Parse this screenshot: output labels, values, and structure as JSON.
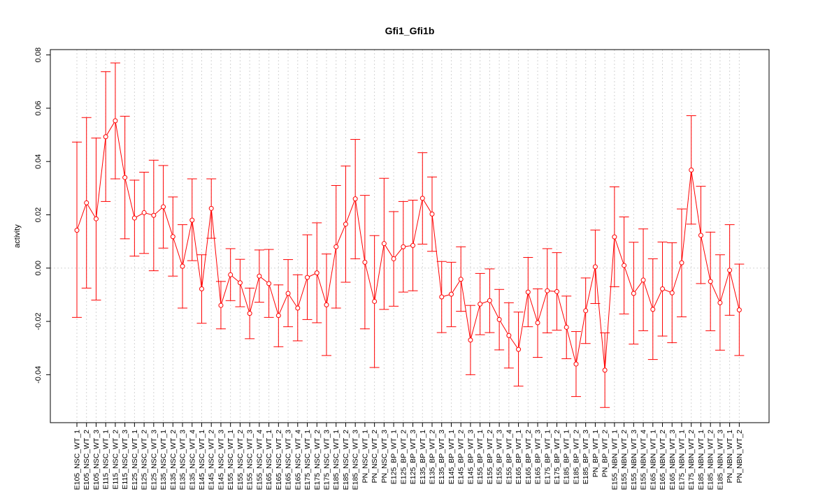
{
  "chart_data": {
    "type": "line",
    "title": "Gfi1_Gfi1b",
    "xlabel": "",
    "ylabel": "activity",
    "ylim": [
      -0.058,
      0.082
    ],
    "yticks": [
      -0.04,
      -0.02,
      0.0,
      0.02,
      0.04,
      0.06,
      0.08
    ],
    "ytick_labels": [
      "-0.04",
      "-0.02",
      "0.00",
      "0.02",
      "0.04",
      "0.06",
      "0.08"
    ],
    "grid": true,
    "color": "#ff0000",
    "categories": [
      "E105_NSC_WT_1",
      "E105_NSC_WT_2",
      "E105_NSC_WT_3",
      "E115_NSC_WT_1",
      "E115_NSC_WT_2",
      "E115_NSC_WT_3",
      "E125_NSC_WT_1",
      "E125_NSC_WT_2",
      "E125_NSC_WT_3",
      "E135_NSC_WT_1",
      "E135_NSC_WT_2",
      "E135_NSC_WT_3",
      "E135_NSC_WT_4",
      "E145_NSC_WT_1",
      "E145_NSC_WT_2",
      "E145_NSC_WT_3",
      "E155_NSC_WT_1",
      "E155_NSC_WT_2",
      "E155_NSC_WT_3",
      "E155_NSC_WT_4",
      "E165_NSC_WT_1",
      "E165_NSC_WT_2",
      "E165_NSC_WT_3",
      "E165_NSC_WT_4",
      "E175_NSC_WT_1",
      "E175_NSC_WT_2",
      "E175_NSC_WT_3",
      "E185_NSC_WT_1",
      "E185_NSC_WT_2",
      "E185_NSC_WT_3",
      "PN_NSC_WT_1",
      "PN_NSC_WT_2",
      "PN_NSC_WT_3",
      "E125_BP_WT_1",
      "E125_BP_WT_2",
      "E125_BP_WT_3",
      "E135_BP_WT_1",
      "E135_BP_WT_2",
      "E135_BP_WT_3",
      "E145_BP_WT_1",
      "E145_BP_WT_2",
      "E145_BP_WT_3",
      "E155_BP_WT_1",
      "E155_BP_WT_2",
      "E155_BP_WT_3",
      "E155_BP_WT_4",
      "E165_BP_WT_1",
      "E165_BP_WT_2",
      "E165_BP_WT_3",
      "E175_BP_WT_1",
      "E175_BP_WT_2",
      "E185_BP_WT_1",
      "E185_BP_WT_2",
      "E185_BP_WT_3",
      "PN_BP_WT_1",
      "PN_BP_WT_2",
      "E155_NBN_WT_1",
      "E155_NBN_WT_2",
      "E155_NBN_WT_3",
      "E155_NBN_WT_4",
      "E165_NBN_WT_1",
      "E165_NBN_WT_2",
      "E165_NBN_WT_3",
      "E175_NBN_WT_1",
      "E175_NBN_WT_2",
      "E185_NBN_WT_1",
      "E185_NBN_WT_2",
      "E185_NBN_WT_3",
      "PN_NBN_WT_1",
      "PN_NBN_WT_2"
    ],
    "values": [
      0.0142,
      0.0245,
      0.0185,
      0.0493,
      0.0553,
      0.034,
      0.0188,
      0.0208,
      0.0198,
      0.023,
      0.0118,
      0.0007,
      0.018,
      -0.0078,
      0.0224,
      -0.014,
      -0.0025,
      -0.0055,
      -0.017,
      -0.003,
      -0.0058,
      -0.0178,
      -0.0095,
      -0.015,
      -0.0035,
      -0.0018,
      -0.0138,
      0.008,
      0.0165,
      0.026,
      0.0022,
      -0.0125,
      0.0092,
      0.0035,
      0.008,
      0.0085,
      0.0262,
      0.0203,
      -0.0108,
      -0.0098,
      -0.0042,
      -0.027,
      -0.0135,
      -0.0122,
      -0.0193,
      -0.0253,
      -0.0305,
      -0.009,
      -0.0205,
      -0.0085,
      -0.0088,
      -0.0222,
      -0.036,
      -0.016,
      0.0005,
      -0.0383,
      0.0117,
      0.001,
      -0.0095,
      -0.0045,
      -0.0155,
      -0.0078,
      -0.0093,
      0.002,
      0.0368,
      0.0123,
      -0.005,
      -0.013,
      -0.0008,
      -0.0157
    ],
    "lower": [
      -0.0185,
      -0.0075,
      -0.012,
      0.025,
      0.0335,
      0.011,
      0.0045,
      0.0055,
      -0.001,
      0.0075,
      -0.003,
      -0.015,
      0.0028,
      -0.0207,
      0.0112,
      -0.0228,
      -0.0122,
      -0.0145,
      -0.0265,
      -0.0128,
      -0.0185,
      -0.0295,
      -0.022,
      -0.0273,
      -0.0193,
      -0.0205,
      -0.0328,
      -0.015,
      -0.0053,
      0.0035,
      -0.0228,
      -0.0373,
      -0.0155,
      -0.0143,
      -0.009,
      -0.0085,
      0.009,
      0.0063,
      -0.0242,
      -0.022,
      -0.0162,
      -0.04,
      -0.025,
      -0.0242,
      -0.0307,
      -0.0375,
      -0.0443,
      -0.022,
      -0.0335,
      -0.0243,
      -0.0233,
      -0.034,
      -0.0482,
      -0.0283,
      -0.0133,
      -0.0523,
      -0.007,
      -0.0172,
      -0.0285,
      -0.0235,
      -0.0343,
      -0.0255,
      -0.028,
      -0.0183,
      0.0165,
      -0.0058,
      -0.0235,
      -0.0308,
      -0.0177,
      -0.0328
    ],
    "upper": [
      0.0473,
      0.0565,
      0.0488,
      0.0737,
      0.077,
      0.057,
      0.033,
      0.036,
      0.0405,
      0.0385,
      0.0267,
      0.0163,
      0.0335,
      0.005,
      0.0335,
      -0.005,
      0.0073,
      0.0033,
      -0.0075,
      0.0068,
      0.007,
      -0.0063,
      0.0032,
      -0.0025,
      0.0125,
      0.017,
      0.0053,
      0.031,
      0.0383,
      0.0483,
      0.0273,
      0.0122,
      0.0337,
      0.0212,
      0.025,
      0.0255,
      0.0433,
      0.0342,
      0.0025,
      0.0022,
      0.008,
      -0.014,
      -0.002,
      -0.0003,
      -0.008,
      -0.013,
      -0.0165,
      0.004,
      -0.0078,
      0.0073,
      0.0058,
      -0.0105,
      -0.0238,
      -0.0037,
      0.0143,
      -0.0243,
      0.0305,
      0.0192,
      0.0097,
      0.0147,
      0.0035,
      0.0098,
      0.0095,
      0.0222,
      0.0572,
      0.0307,
      0.0135,
      0.005,
      0.0163,
      0.0015
    ]
  }
}
